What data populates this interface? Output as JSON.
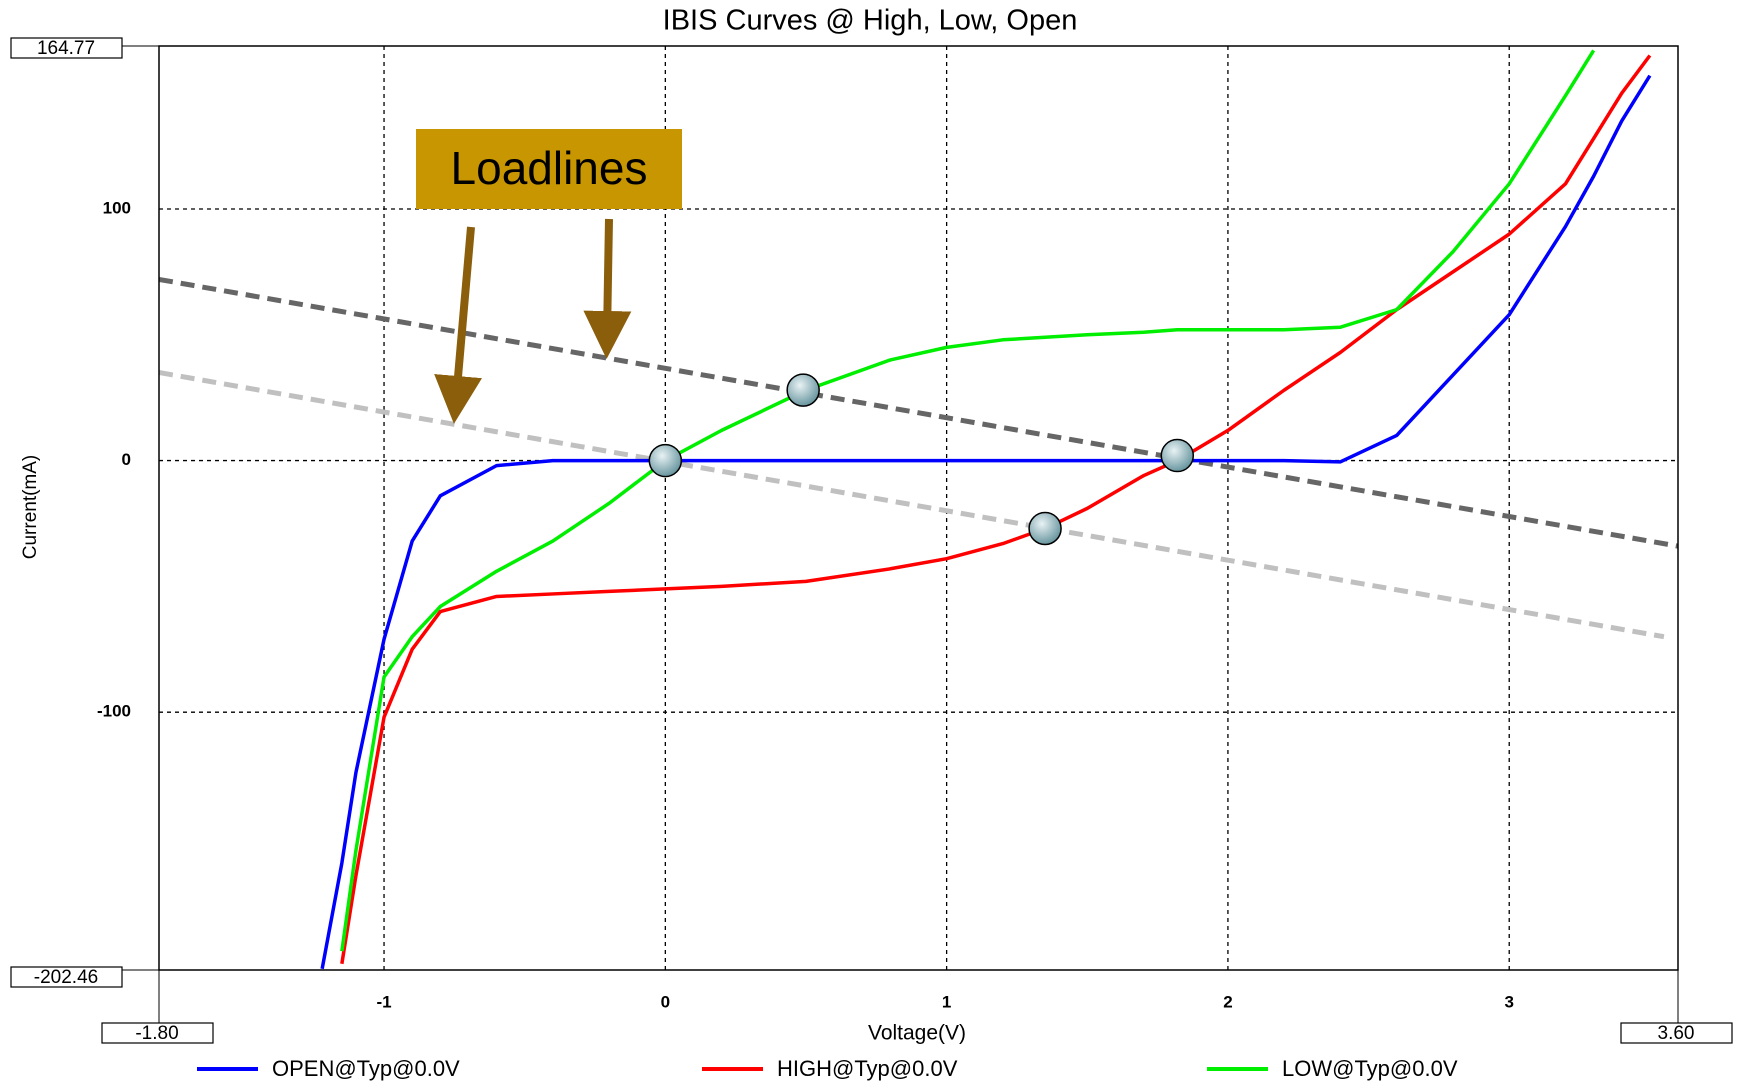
{
  "chart_data": {
    "type": "line",
    "title": "IBIS Curves @ High, Low, Open",
    "xlabel": "Voltage(V)",
    "ylabel": "Current(mA)",
    "xlim": [
      -1.8,
      3.6
    ],
    "ylim": [
      -202.46,
      164.77
    ],
    "range_labels": {
      "x": [
        "-1.80",
        "3.60"
      ],
      "y": [
        "-202.46",
        "164.77"
      ]
    },
    "xticks": [
      -1,
      0,
      1,
      2,
      3
    ],
    "yticks": [
      -100,
      0,
      100
    ],
    "grid": true,
    "legend": "bottom",
    "x": [
      -1.22,
      -1.15,
      -1.1,
      -1.0,
      -0.9,
      -0.8,
      -0.6,
      -0.4,
      -0.2,
      0,
      0.2,
      0.5,
      0.8,
      1.0,
      1.2,
      1.35,
      1.5,
      1.7,
      1.82,
      2.0,
      2.2,
      2.4,
      2.6,
      2.8,
      3.0,
      3.2,
      3.3,
      3.4,
      3.5
    ],
    "series": [
      {
        "name": "OPEN@Typ@0.0V",
        "color": "#0000ff",
        "values": [
          -202,
          -160,
          -124,
          -71,
          -32,
          -14,
          -2,
          0,
          0,
          0,
          0,
          0,
          0,
          0,
          0,
          0,
          0,
          0,
          0,
          0,
          0,
          -0.5,
          10,
          34,
          58,
          93,
          113,
          135,
          153
        ]
      },
      {
        "name": "HIGH@Typ@0.0V",
        "color": "#ff0000",
        "values": [
          null,
          -200,
          -165,
          -102,
          -75,
          -60,
          -54,
          -53,
          -52,
          -51,
          -50,
          -48,
          -43,
          -39,
          -33,
          -27,
          -19,
          -6,
          0,
          12,
          28,
          43,
          60,
          75,
          90,
          110,
          128,
          146,
          161
        ]
      },
      {
        "name": "LOW@Typ@0.0V",
        "color": "#00ee00",
        "values": [
          null,
          -195,
          -155,
          -86,
          -70,
          -58,
          -44,
          -32,
          -17,
          0,
          12,
          28,
          40,
          45,
          48,
          49,
          50,
          51,
          52,
          52,
          52,
          53,
          60,
          83,
          110,
          145,
          163,
          null,
          null
        ]
      }
    ],
    "loadlines": [
      {
        "color": "#666666",
        "x": [
          -1.8,
          3.6
        ],
        "values": [
          72,
          -34
        ]
      },
      {
        "color": "#c0c0c0",
        "x": [
          -1.8,
          3.55
        ],
        "values": [
          35,
          -70
        ]
      }
    ],
    "operating_points": {
      "x": [
        0,
        0.49,
        1.82,
        1.35
      ],
      "values": [
        0,
        28,
        2,
        -27
      ]
    },
    "annotation": "Loadlines"
  }
}
